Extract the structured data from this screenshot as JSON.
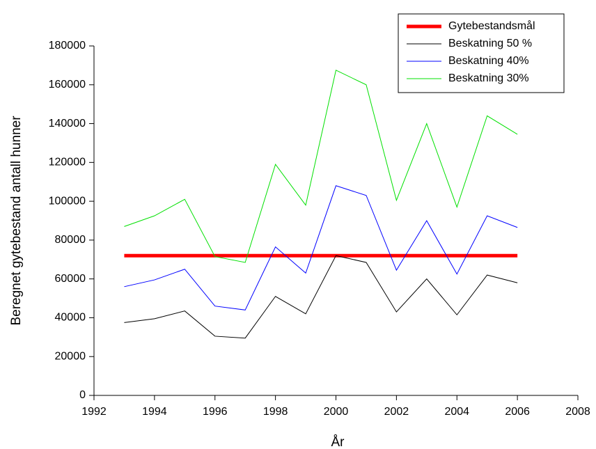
{
  "chart_data": {
    "type": "line",
    "xlabel": "År",
    "ylabel": "Beregnet gytebestand antall hunner",
    "x": [
      1993,
      1994,
      1995,
      1996,
      1997,
      1998,
      1999,
      2000,
      2001,
      2002,
      2003,
      2004,
      2005,
      2006
    ],
    "series": [
      {
        "name": "Gytebestandsmål",
        "color": "#ff0000",
        "width": 5,
        "values": [
          72000,
          72000,
          72000,
          72000,
          72000,
          72000,
          72000,
          72000,
          72000,
          72000,
          72000,
          72000,
          72000,
          72000
        ]
      },
      {
        "name": "Beskatning 50 %",
        "color": "#000000",
        "width": 1,
        "values": [
          37500,
          39500,
          43500,
          30500,
          29500,
          51000,
          42000,
          72000,
          68500,
          43000,
          60000,
          41500,
          62000,
          58000
        ]
      },
      {
        "name": "Beskatning 40%",
        "color": "#0000ff",
        "width": 1,
        "values": [
          56000,
          59500,
          65000,
          46000,
          44000,
          76500,
          63000,
          108000,
          103000,
          64500,
          90000,
          62500,
          92500,
          86500
        ]
      },
      {
        "name": "Beskatning 30%",
        "color": "#00e000",
        "width": 1,
        "values": [
          87000,
          92500,
          101000,
          71500,
          68500,
          119000,
          98000,
          167500,
          160000,
          100500,
          140000,
          97000,
          144000,
          134500
        ]
      }
    ],
    "xlim": [
      1992,
      2008
    ],
    "xticks": [
      1992,
      1994,
      1996,
      1998,
      2000,
      2002,
      2004,
      2006,
      2008
    ],
    "ylim": [
      0,
      180000
    ],
    "yticks": [
      0,
      20000,
      40000,
      60000,
      80000,
      100000,
      120000,
      140000,
      160000,
      180000
    ],
    "legend": "upper right"
  }
}
